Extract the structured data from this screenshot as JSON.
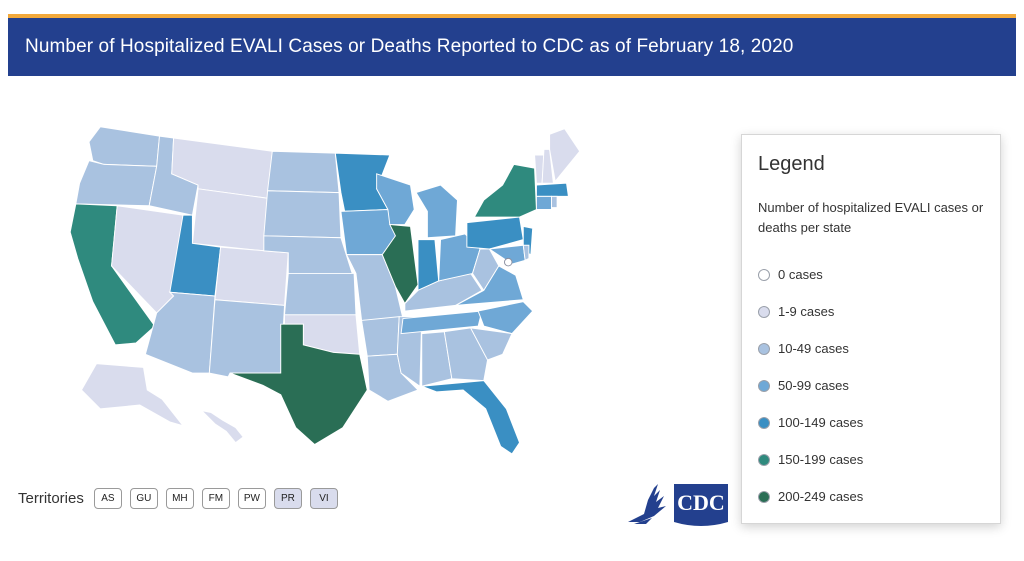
{
  "header": {
    "title": "Number of Hospitalized EVALI Cases or Deaths Reported to CDC as of February 18, 2020"
  },
  "colors": {
    "header_bg": "#23408e",
    "header_accent": "#f2a93b",
    "state_border": "#ffffff"
  },
  "legend": {
    "title": "Legend",
    "subtitle": "Number of hospitalized EVALI cases or deaths per state",
    "items": [
      {
        "label": "0 cases",
        "color": "#ffffff"
      },
      {
        "label": "1-9 cases",
        "color": "#d9dced"
      },
      {
        "label": "10-49 cases",
        "color": "#a9c2e0"
      },
      {
        "label": "50-99 cases",
        "color": "#6fa8d6"
      },
      {
        "label": "100-149 cases",
        "color": "#3a8fc3"
      },
      {
        "label": "150-199 cases",
        "color": "#2f8a7e"
      },
      {
        "label": "200-249 cases",
        "color": "#2a6e55"
      }
    ]
  },
  "territories": {
    "label": "Territories",
    "items": [
      {
        "code": "AS",
        "category": 0
      },
      {
        "code": "GU",
        "category": 0
      },
      {
        "code": "MH",
        "category": 0
      },
      {
        "code": "FM",
        "category": 0
      },
      {
        "code": "PW",
        "category": 0
      },
      {
        "code": "PR",
        "category": 1
      },
      {
        "code": "VI",
        "category": 1
      }
    ]
  },
  "states": [
    {
      "id": "WA",
      "category": 2
    },
    {
      "id": "OR",
      "category": 2
    },
    {
      "id": "CA",
      "category": 5
    },
    {
      "id": "ID",
      "category": 2
    },
    {
      "id": "NV",
      "category": 1
    },
    {
      "id": "MT",
      "category": 1
    },
    {
      "id": "WY",
      "category": 1
    },
    {
      "id": "UT",
      "category": 4
    },
    {
      "id": "AZ",
      "category": 2
    },
    {
      "id": "CO",
      "category": 1
    },
    {
      "id": "NM",
      "category": 2
    },
    {
      "id": "ND",
      "category": 2
    },
    {
      "id": "SD",
      "category": 2
    },
    {
      "id": "NE",
      "category": 2
    },
    {
      "id": "KS",
      "category": 2
    },
    {
      "id": "OK",
      "category": 1
    },
    {
      "id": "TX",
      "category": 6
    },
    {
      "id": "MN",
      "category": 4
    },
    {
      "id": "IA",
      "category": 3
    },
    {
      "id": "MO",
      "category": 2
    },
    {
      "id": "AR",
      "category": 2
    },
    {
      "id": "LA",
      "category": 2
    },
    {
      "id": "WI",
      "category": 3
    },
    {
      "id": "IL",
      "category": 6
    },
    {
      "id": "MS",
      "category": 2
    },
    {
      "id": "MI",
      "category": 3
    },
    {
      "id": "IN",
      "category": 4
    },
    {
      "id": "KY",
      "category": 2
    },
    {
      "id": "TN",
      "category": 3
    },
    {
      "id": "AL",
      "category": 2
    },
    {
      "id": "GA",
      "category": 2
    },
    {
      "id": "FL",
      "category": 4
    },
    {
      "id": "OH",
      "category": 3
    },
    {
      "id": "WV",
      "category": 2
    },
    {
      "id": "VA",
      "category": 3
    },
    {
      "id": "NC",
      "category": 3
    },
    {
      "id": "SC",
      "category": 2
    },
    {
      "id": "PA",
      "category": 4
    },
    {
      "id": "NY",
      "category": 5
    },
    {
      "id": "NJ",
      "category": 4
    },
    {
      "id": "MD",
      "category": 3
    },
    {
      "id": "DE",
      "category": 2
    },
    {
      "id": "DC",
      "category": 0
    },
    {
      "id": "VT",
      "category": 1
    },
    {
      "id": "NH",
      "category": 1
    },
    {
      "id": "ME",
      "category": 1
    },
    {
      "id": "MA",
      "category": 4
    },
    {
      "id": "CT",
      "category": 3
    },
    {
      "id": "RI",
      "category": 2
    },
    {
      "id": "AK",
      "category": 1
    },
    {
      "id": "HI",
      "category": 1
    }
  ]
}
